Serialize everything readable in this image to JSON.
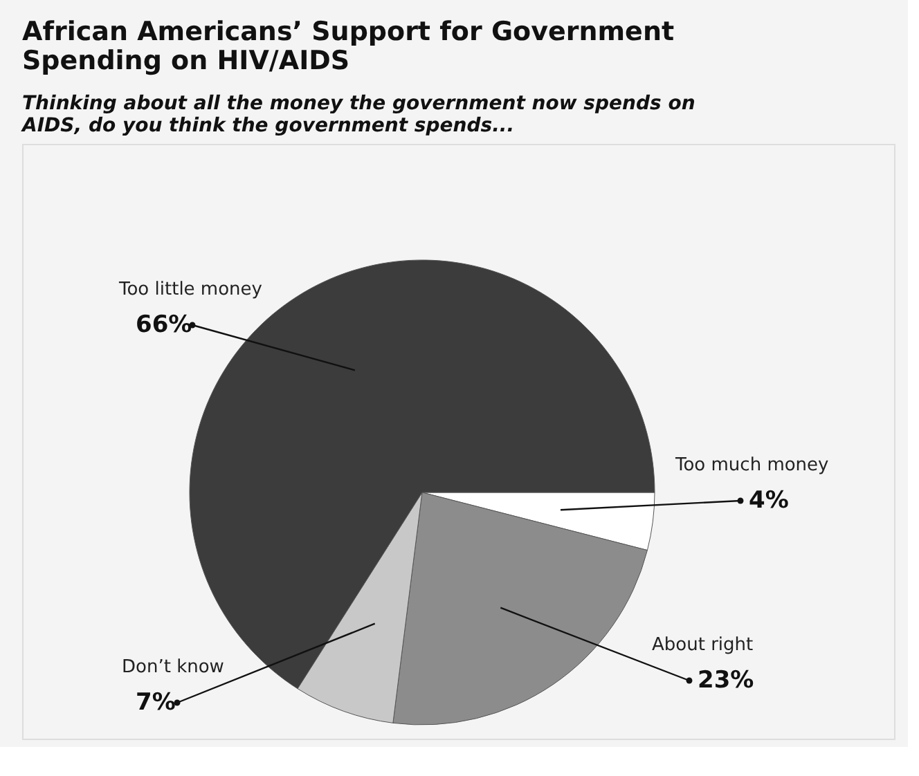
{
  "chart_data": {
    "type": "pie",
    "title": "African Americans’ Support for Government Spending on HIV/AIDS",
    "subtitle": "Thinking about all the money the government now spends on AIDS, do you think the government spends...",
    "categories": [
      "Too much money",
      "About right",
      "Don’t know",
      "Too little money"
    ],
    "values": [
      4,
      23,
      7,
      66
    ],
    "value_labels": [
      "4%",
      "23%",
      "7%",
      "66%"
    ],
    "colors": [
      "#ffffff",
      "#8c8c8c",
      "#c8c8c8",
      "#3c3c3c"
    ],
    "legend": false
  }
}
